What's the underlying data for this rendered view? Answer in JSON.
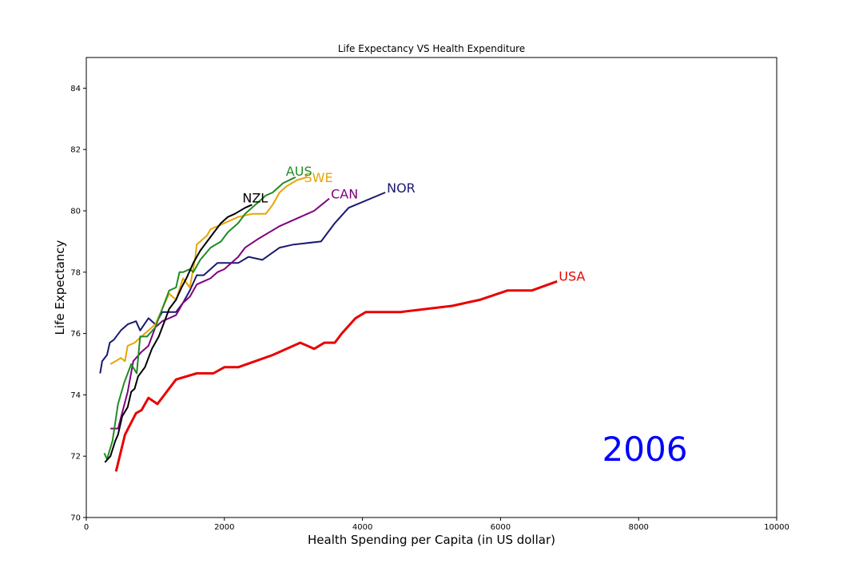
{
  "chart_data": {
    "type": "line",
    "title": "Life Expectancy VS Health Expenditure",
    "xlabel": "Health Spending per Capita (in US dollar)",
    "ylabel": "Life Expectancy",
    "xlim": [
      0,
      10000
    ],
    "ylim": [
      70,
      85
    ],
    "xticks": [
      "0",
      "2000",
      "4000",
      "6000",
      "8000",
      "10000"
    ],
    "yticks": [
      "70",
      "72",
      "74",
      "76",
      "78",
      "80",
      "82",
      "84"
    ],
    "grid": false,
    "annotation": {
      "text": "2006",
      "color": "#0000ff"
    },
    "series": [
      {
        "name": "NOR",
        "color": "#191970",
        "width": 2,
        "x": [
          200,
          230,
          300,
          340,
          400,
          500,
          600,
          720,
          780,
          900,
          1000,
          1100,
          1300,
          1400,
          1500,
          1600,
          1700,
          1900,
          2000,
          2200,
          2350,
          2550,
          2800,
          3000,
          3400,
          3600,
          3800,
          4330
        ],
        "y": [
          74.7,
          75.1,
          75.3,
          75.7,
          75.8,
          76.1,
          76.3,
          76.4,
          76.1,
          76.5,
          76.3,
          76.7,
          76.7,
          77.0,
          77.4,
          77.9,
          77.9,
          78.3,
          78.3,
          78.3,
          78.5,
          78.4,
          78.8,
          78.9,
          79.0,
          79.6,
          80.1,
          80.6
        ]
      },
      {
        "name": "CAN",
        "color": "#800080",
        "width": 2,
        "x": [
          350,
          460,
          600,
          680,
          800,
          900,
          1000,
          1100,
          1200,
          1300,
          1400,
          1500,
          1600,
          1700,
          1800,
          1900,
          2000,
          2200,
          2300,
          2500,
          2800,
          3100,
          3300,
          3520
        ],
        "y": [
          72.9,
          72.9,
          74.1,
          75.1,
          75.4,
          75.6,
          76.2,
          76.4,
          76.5,
          76.6,
          77.0,
          77.2,
          77.6,
          77.7,
          77.8,
          78.0,
          78.1,
          78.5,
          78.8,
          79.1,
          79.5,
          79.8,
          80.0,
          80.4
        ]
      },
      {
        "name": "SWE",
        "color": "#e8a400",
        "width": 2,
        "x": [
          350,
          500,
          560,
          600,
          700,
          800,
          900,
          1000,
          1100,
          1200,
          1300,
          1400,
          1500,
          1580,
          1600,
          1750,
          1800,
          2000,
          2200,
          2400,
          2600,
          2700,
          2800,
          2900,
          3050,
          3200
        ],
        "y": [
          75.0,
          75.2,
          75.1,
          75.6,
          75.7,
          75.9,
          76.1,
          76.3,
          76.8,
          77.3,
          77.1,
          77.8,
          77.5,
          78.5,
          78.9,
          79.2,
          79.4,
          79.6,
          79.8,
          79.9,
          79.9,
          80.2,
          80.6,
          80.8,
          81.0,
          81.1
        ]
      },
      {
        "name": "AUS",
        "color": "#228b22",
        "width": 2,
        "x": [
          260,
          300,
          380,
          460,
          550,
          650,
          730,
          780,
          880,
          1000,
          1100,
          1200,
          1300,
          1350,
          1400,
          1500,
          1550,
          1650,
          1800,
          1950,
          2050,
          2200,
          2300,
          2450,
          2600,
          2700,
          2850,
          3030
        ],
        "y": [
          72.1,
          71.9,
          72.5,
          73.7,
          74.4,
          75.0,
          74.7,
          75.9,
          75.9,
          76.2,
          76.8,
          77.4,
          77.5,
          78.0,
          78.0,
          78.1,
          78.0,
          78.4,
          78.8,
          79.0,
          79.3,
          79.6,
          79.9,
          80.2,
          80.5,
          80.6,
          80.9,
          81.1
        ]
      },
      {
        "name": "NZL",
        "color": "#000000",
        "width": 2,
        "x": [
          270,
          350,
          420,
          460,
          520,
          600,
          650,
          700,
          750,
          850,
          950,
          1050,
          1150,
          1200,
          1300,
          1380,
          1450,
          1550,
          1650,
          1750,
          1850,
          1950,
          2050,
          2150,
          2300,
          2400
        ],
        "y": [
          71.8,
          72.0,
          72.5,
          72.7,
          73.3,
          73.6,
          74.1,
          74.2,
          74.6,
          74.9,
          75.5,
          75.9,
          76.5,
          76.8,
          77.1,
          77.5,
          77.8,
          78.3,
          78.7,
          79.0,
          79.3,
          79.6,
          79.8,
          79.9,
          80.1,
          80.2
        ]
      },
      {
        "name": "USA",
        "color": "#e80000",
        "width": 3,
        "x": [
          430,
          560,
          720,
          800,
          900,
          1030,
          1300,
          1600,
          1840,
          2000,
          2200,
          2450,
          2700,
          3100,
          3300,
          3450,
          3600,
          3700,
          3900,
          4050,
          4550,
          5300,
          5700,
          6100,
          6450,
          6820
        ],
        "y": [
          71.5,
          72.7,
          73.4,
          73.5,
          73.9,
          73.7,
          74.5,
          74.7,
          74.7,
          74.9,
          74.9,
          75.1,
          75.3,
          75.7,
          75.5,
          75.7,
          75.7,
          76.0,
          76.5,
          76.7,
          76.7,
          76.9,
          77.1,
          77.4,
          77.4,
          77.7
        ]
      }
    ]
  }
}
